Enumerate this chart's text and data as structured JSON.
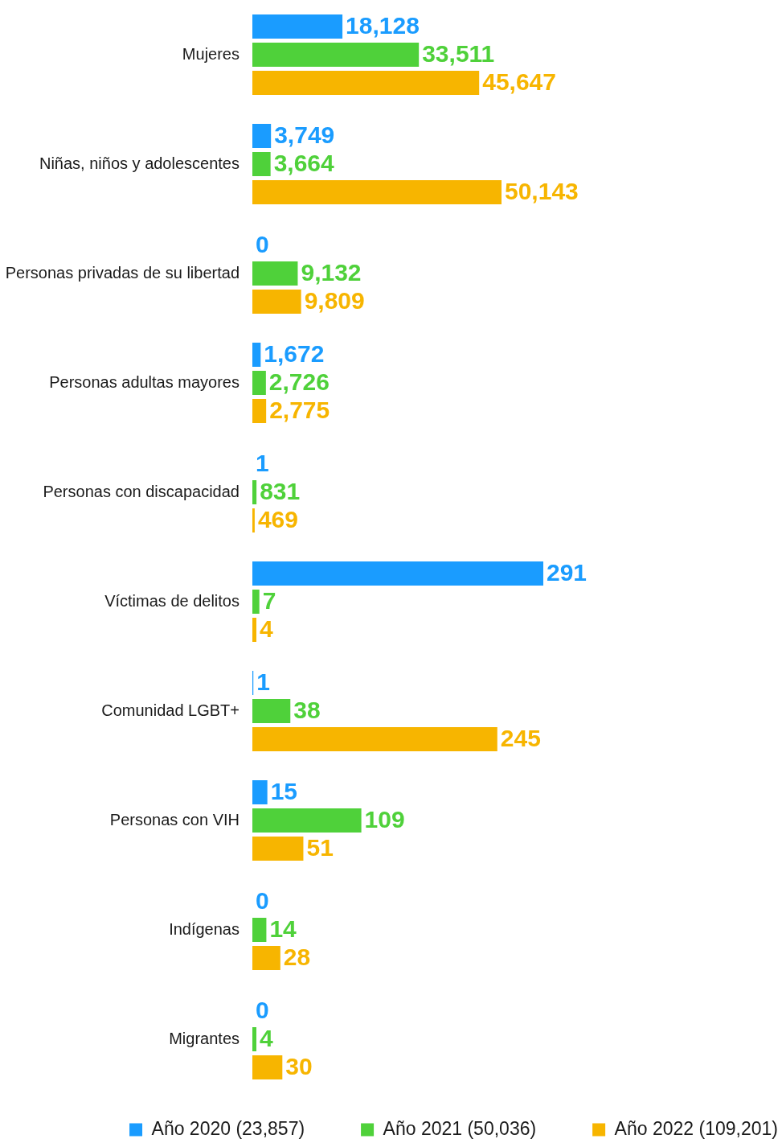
{
  "chart_data": [
    {
      "type": "bar",
      "orientation": "horizontal",
      "categories": [
        "Mujeres",
        "Niñas, niños y adolescentes",
        "Personas privadas de su libertad",
        "Personas adultas mayores",
        "Personas con discapacidad"
      ],
      "series": [
        {
          "color": "#1a9cff",
          "values": [
            18128,
            3749,
            0,
            1672,
            1
          ],
          "value_labels": [
            "18,128",
            "3,749",
            "0",
            "1,672",
            "1"
          ]
        },
        {
          "color": "#4fd13a",
          "values": [
            33511,
            3664,
            9132,
            2726,
            831
          ],
          "value_labels": [
            "33,511",
            "3,664",
            "9,132",
            "2,726",
            "831"
          ]
        },
        {
          "color": "#f7b500",
          "values": [
            45647,
            50143,
            9809,
            2775,
            469
          ],
          "value_labels": [
            "45,647",
            "50,143",
            "9,809",
            "2,775",
            "469"
          ]
        }
      ],
      "tick_labels": "y"
    },
    {
      "type": "bar",
      "orientation": "horizontal",
      "categories": [
        "Víctimas de delitos",
        "Comunidad LGBT+",
        "Personas con VIH",
        "Indígenas",
        "Migrantes"
      ],
      "series": [
        {
          "name": "Año 2020 (23,857)",
          "color": "#1a9cff",
          "values": [
            291,
            1,
            15,
            0,
            0
          ]
        },
        {
          "name": "Año 2021 (50,036)",
          "color": "#4fd13a",
          "values": [
            7,
            38,
            109,
            14,
            4
          ]
        },
        {
          "name": "Año 2022 (109,201)",
          "color": "#f7b500",
          "values": [
            4,
            245,
            51,
            28,
            30
          ]
        }
      ],
      "data_labels": true,
      "tick_labels": "y",
      "legend": "bottom"
    }
  ]
}
